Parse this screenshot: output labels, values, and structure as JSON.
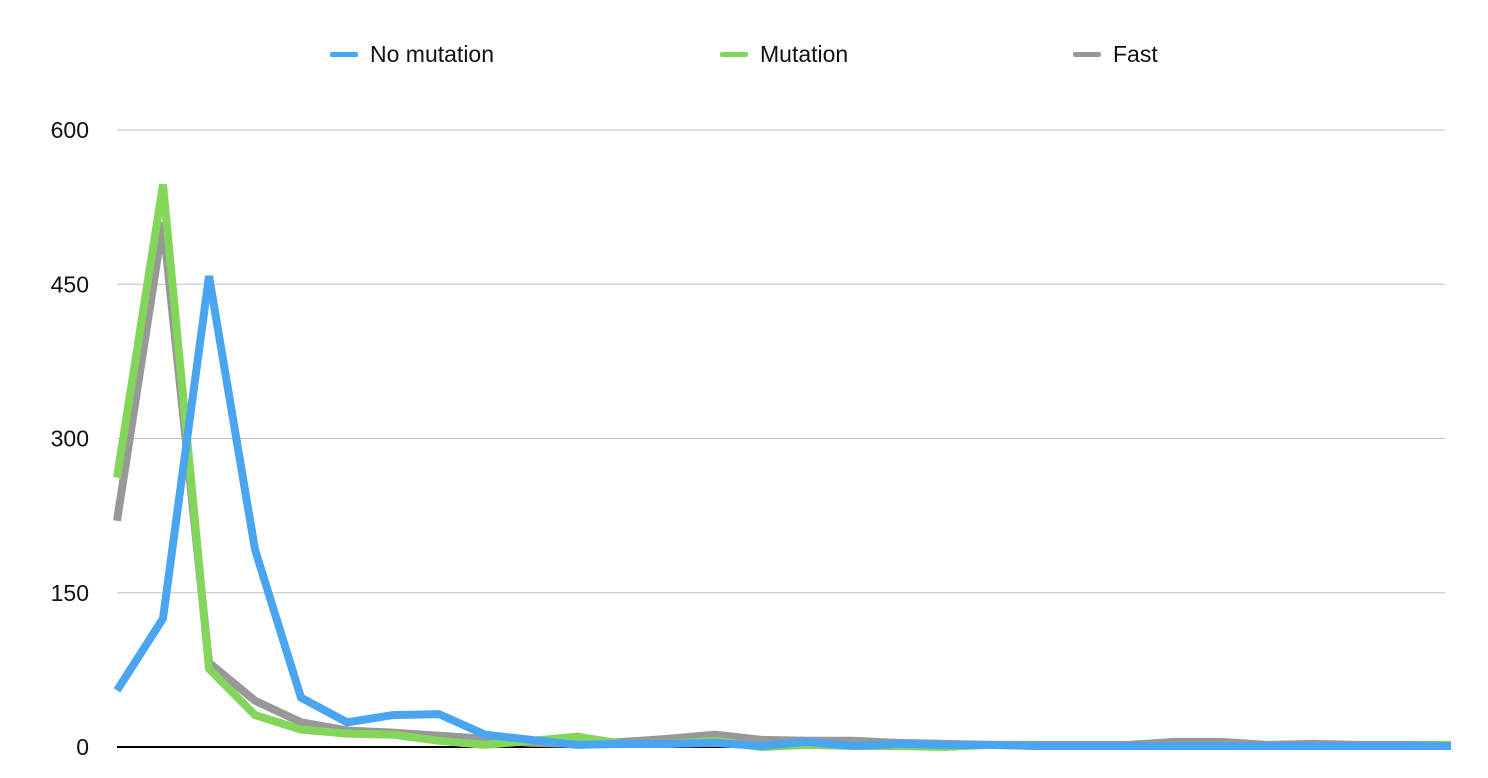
{
  "chart_data": {
    "type": "line",
    "title": "",
    "xlabel": "",
    "ylabel": "",
    "ylim": [
      0,
      600
    ],
    "yticks": [
      "0",
      "150",
      "300",
      "450",
      "600"
    ],
    "grid": true,
    "legend_position": "top",
    "x": [
      1,
      2,
      3,
      4,
      5,
      6,
      7,
      8,
      9,
      10,
      11,
      12,
      13,
      14,
      15,
      16,
      17,
      18,
      19,
      20,
      21,
      22,
      23,
      24,
      25,
      26,
      27,
      28,
      29,
      30
    ],
    "series": [
      {
        "name": "No mutation",
        "color": "#4aa5f0",
        "values": [
          55,
          125,
          458,
          192,
          48,
          24,
          31,
          32,
          12,
          7,
          2,
          3,
          3,
          4,
          1,
          5,
          1,
          3,
          2,
          2,
          1,
          1,
          1,
          1,
          1,
          1,
          1,
          1,
          1,
          1
        ]
      },
      {
        "name": "Mutation",
        "color": "#84d65a",
        "values": [
          262,
          547,
          76,
          31,
          17,
          13,
          12,
          6,
          2,
          6,
          10,
          3,
          3,
          6,
          0,
          2,
          1,
          1,
          0,
          2,
          1,
          1,
          1,
          1,
          1,
          1,
          1,
          1,
          1,
          2
        ]
      },
      {
        "name": "Fast",
        "color": "#989898",
        "values": [
          220,
          510,
          82,
          45,
          24,
          16,
          14,
          11,
          8,
          4,
          3,
          5,
          8,
          12,
          7,
          6,
          6,
          4,
          3,
          2,
          2,
          2,
          2,
          5,
          5,
          2,
          3,
          2,
          2,
          2
        ]
      }
    ]
  }
}
